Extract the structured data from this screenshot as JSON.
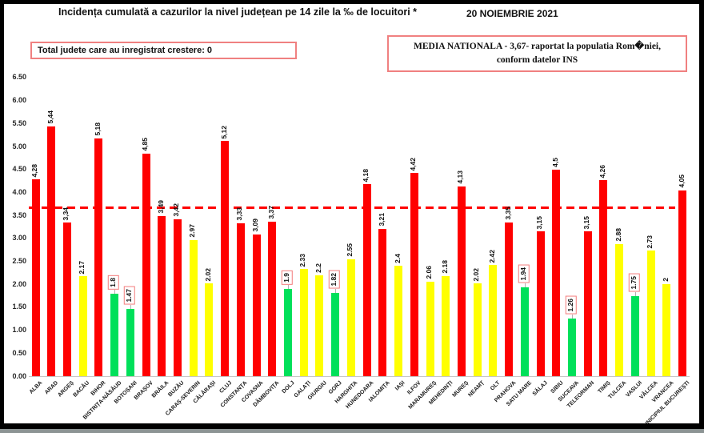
{
  "page": {
    "title": "Incidența cumulată a cazurilor la nivel județean pe 14 zile la ‰ de locuitori *",
    "date": "20 NOIEMBRIE 2021"
  },
  "info_boxes": {
    "growth": "Total judete care au inregistrat crestere: 0",
    "national_average_line1": "MEDIA NATIONALA - 3,67-  raportat la populatia  Rom�niei,",
    "national_average_line2": "conform datelor INS"
  },
  "palette": {
    "bar_red": "#ff0000",
    "bar_yellow": "#ffff00",
    "bar_green": "#00e05a",
    "label_box_border": "#f47c7c",
    "info_box_border": "#f08080",
    "reference_line": "#ff0000",
    "axis_line": "#c6c6c6",
    "text": "#111111"
  },
  "chart_data": {
    "type": "bar",
    "title": "Incidența cumulată a cazurilor la nivel județean pe 14 zile la ‰ de locuitori *",
    "xlabel": "",
    "ylabel": "",
    "ylim": [
      0,
      6.5
    ],
    "yticks": [
      "0.00",
      "0.50",
      "1.00",
      "1.50",
      "2.00",
      "2.50",
      "3.00",
      "3.50",
      "4.00",
      "4.50",
      "5.00",
      "5.50",
      "6.00",
      "6.50"
    ],
    "grid": false,
    "legend": false,
    "reference_line": {
      "value": 3.67,
      "style": "dashed",
      "color": "#ff0000"
    },
    "categories": [
      "ALBA",
      "ARAD",
      "ARGEȘ",
      "BACĂU",
      "BIHOR",
      "BISTRIȚA-NĂSĂUD",
      "BOTOȘANI",
      "BRAȘOV",
      "BRĂILA",
      "BUZĂU",
      "CARAȘ-SEVERIN",
      "CĂLĂRAȘI",
      "CLUJ",
      "CONSTANȚA",
      "COVASNA",
      "DÂMBOVIȚA",
      "DOLJ",
      "GALAȚI",
      "GIURGIU",
      "GORJ",
      "HARGHITA",
      "HUNEDOARA",
      "IALOMIȚA",
      "IAȘI",
      "ILFOV",
      "MARAMUREȘ",
      "MEHEDINȚI",
      "MUREȘ",
      "NEAMȚ",
      "OLT",
      "PRAHOVA",
      "SATU MARE",
      "SĂLAJ",
      "SIBIU",
      "SUCEAVA",
      "TELEORMAN",
      "TIMIȘ",
      "TULCEA",
      "VASLUI",
      "VÂLCEA",
      "VRANCEA",
      "MUNICIPIUL BUCUREȘTI"
    ],
    "values": [
      4.28,
      5.44,
      3.34,
      2.17,
      5.18,
      1.8,
      1.47,
      4.85,
      3.49,
      3.42,
      2.97,
      2.02,
      5.12,
      3.33,
      3.09,
      3.37,
      1.9,
      2.33,
      2.2,
      1.82,
      2.55,
      4.18,
      3.21,
      2.4,
      4.42,
      2.06,
      2.18,
      4.13,
      2.02,
      2.42,
      3.35,
      1.94,
      3.15,
      4.5,
      1.26,
      3.15,
      4.26,
      2.88,
      1.75,
      2.73,
      2,
      4.05
    ],
    "bar_labels": [
      "4,28",
      "5,44",
      "3,34",
      "2.17",
      "5,18",
      "1.8",
      "1.47",
      "4,85",
      "3,49",
      "3,42",
      "2.97",
      "2.02",
      "5,12",
      "3,33",
      "3,09",
      "3,37",
      "1.9",
      "2.33",
      "2.2",
      "1.82",
      "2.55",
      "4,18",
      "3,21",
      "2.4",
      "4,42",
      "2.06",
      "2.18",
      "4,13",
      "2.02",
      "2.42",
      "3,35",
      "1.94",
      "3,15",
      "4,5",
      "1.26",
      "3,15",
      "4,26",
      "2.88",
      "1.75",
      "2.73",
      "2",
      "4,05"
    ],
    "bar_colors": [
      "red",
      "red",
      "red",
      "yellow",
      "red",
      "green",
      "green",
      "red",
      "red",
      "red",
      "yellow",
      "yellow",
      "red",
      "red",
      "red",
      "red",
      "green",
      "yellow",
      "yellow",
      "green",
      "yellow",
      "red",
      "red",
      "yellow",
      "red",
      "yellow",
      "yellow",
      "red",
      "yellow",
      "yellow",
      "red",
      "green",
      "red",
      "red",
      "green",
      "red",
      "red",
      "yellow",
      "green",
      "yellow",
      "yellow",
      "red"
    ],
    "boxed_labels": [
      false,
      false,
      false,
      false,
      false,
      true,
      true,
      false,
      false,
      false,
      false,
      false,
      false,
      false,
      false,
      false,
      true,
      false,
      false,
      true,
      false,
      false,
      false,
      false,
      false,
      false,
      false,
      false,
      false,
      false,
      false,
      true,
      false,
      false,
      true,
      false,
      false,
      false,
      true,
      false,
      false,
      false
    ]
  }
}
